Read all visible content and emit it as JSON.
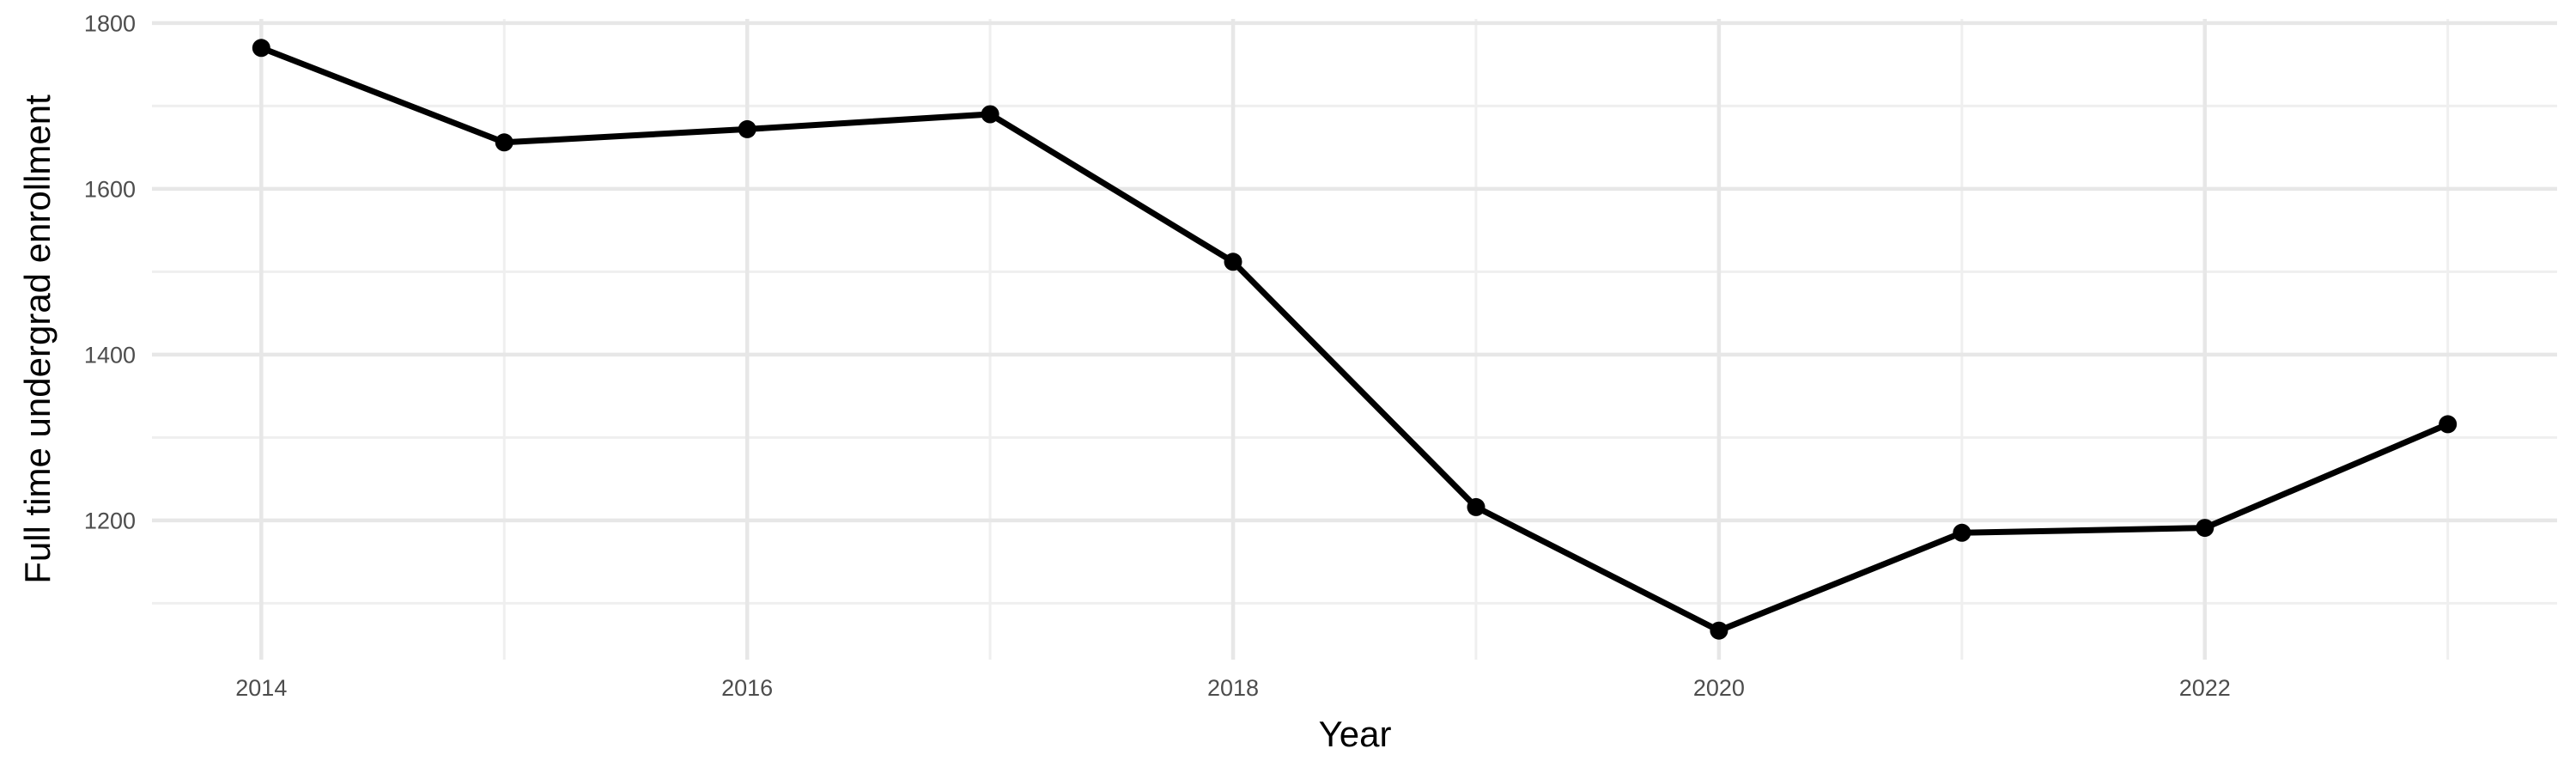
{
  "chart_data": {
    "type": "line",
    "title": "",
    "xlabel": "Year",
    "ylabel": "Full time undergrad enrollment",
    "series": [
      {
        "name": "Full time undergrad enrollment",
        "x": [
          2014,
          2015,
          2016,
          2017,
          2018,
          2019,
          2020,
          2021,
          2022,
          2023
        ],
        "values": [
          1770,
          1656,
          1672,
          1690,
          1512,
          1216,
          1067,
          1185,
          1191,
          1316
        ]
      }
    ],
    "xlim": [
      2013.55,
      2023.45
    ],
    "ylim": [
      1032,
      1805
    ],
    "x_major_ticks": [
      2014,
      2016,
      2018,
      2020,
      2022
    ],
    "x_minor_ticks": [
      2015,
      2017,
      2019,
      2021,
      2023
    ],
    "y_major_ticks": [
      1200,
      1400,
      1600,
      1800
    ],
    "y_minor_ticks": [
      1100,
      1300,
      1500,
      1700
    ],
    "grid": "on",
    "legend": "none",
    "colors": {
      "line": "#000000",
      "point": "#000000",
      "grid_major": "#E7E7E7",
      "grid_minor": "#EFEFEF",
      "tick_label": "#4D4D4D",
      "axis_title": "#000000",
      "background": "#FFFFFF"
    }
  }
}
